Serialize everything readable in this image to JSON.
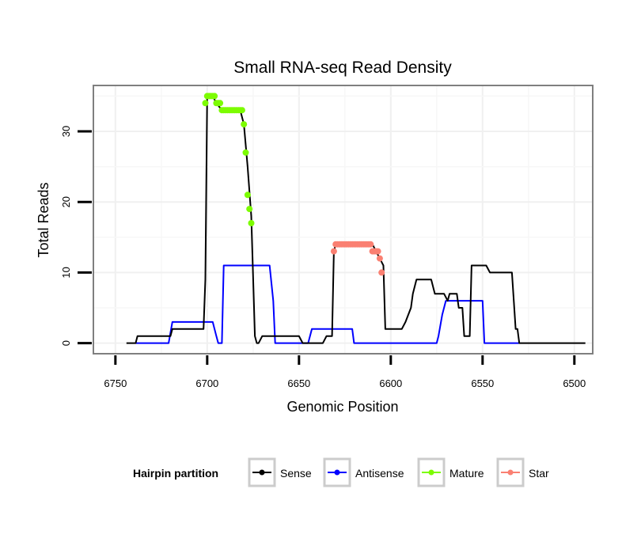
{
  "chart_data": {
    "type": "line",
    "title": "Small RNA-seq Read Density",
    "xlabel": "Genomic Position",
    "ylabel": "Total Reads",
    "xlim": [
      6762,
      6490
    ],
    "ylim": [
      -1.5,
      36.5
    ],
    "x_reversed": true,
    "x_ticks": [
      6750,
      6700,
      6650,
      6600,
      6550,
      6500
    ],
    "y_ticks": [
      0,
      10,
      20,
      30
    ],
    "grid": true,
    "legend": {
      "title": "Hairpin partition",
      "position": "bottom",
      "entries": [
        {
          "name": "Sense",
          "color": "#000000"
        },
        {
          "name": "Antisense",
          "color": "#0000ff"
        },
        {
          "name": "Mature",
          "color": "#7cfc00"
        },
        {
          "name": "Star",
          "color": "#fa8072"
        }
      ]
    },
    "series": [
      {
        "name": "Sense",
        "style": "line",
        "color": "#000000",
        "points": [
          [
            6744,
            0
          ],
          [
            6739,
            0
          ],
          [
            6738,
            1
          ],
          [
            6720,
            1
          ],
          [
            6719,
            2
          ],
          [
            6702,
            2
          ],
          [
            6701,
            9
          ],
          [
            6700,
            35
          ],
          [
            6697,
            35
          ],
          [
            6695,
            34
          ],
          [
            6692,
            33
          ],
          [
            6688,
            33
          ],
          [
            6682,
            33
          ],
          [
            6680,
            31
          ],
          [
            6678,
            25
          ],
          [
            6676,
            18
          ],
          [
            6674,
            1
          ],
          [
            6673,
            0
          ],
          [
            6672,
            0
          ],
          [
            6670,
            1
          ],
          [
            6650,
            1
          ],
          [
            6648,
            0
          ],
          [
            6637,
            0
          ],
          [
            6635,
            1
          ],
          [
            6632,
            1
          ],
          [
            6631,
            13
          ],
          [
            6630,
            14
          ],
          [
            6610,
            14
          ],
          [
            6606,
            12
          ],
          [
            6604,
            11
          ],
          [
            6603,
            2
          ],
          [
            6594,
            2
          ],
          [
            6592,
            3
          ],
          [
            6589,
            5
          ],
          [
            6588,
            7
          ],
          [
            6586,
            9
          ],
          [
            6578,
            9
          ],
          [
            6576,
            7
          ],
          [
            6571,
            7
          ],
          [
            6569,
            6
          ],
          [
            6568,
            7
          ],
          [
            6564,
            7
          ],
          [
            6563,
            5
          ],
          [
            6561,
            5
          ],
          [
            6560,
            1
          ],
          [
            6557,
            1
          ],
          [
            6556,
            11
          ],
          [
            6548,
            11
          ],
          [
            6546,
            10
          ],
          [
            6534,
            10
          ],
          [
            6532,
            2
          ],
          [
            6531,
            2
          ],
          [
            6530,
            0
          ],
          [
            6494,
            0
          ]
        ]
      },
      {
        "name": "Antisense",
        "style": "line",
        "color": "#0000ff",
        "points": [
          [
            6739,
            0
          ],
          [
            6721,
            0
          ],
          [
            6719,
            3
          ],
          [
            6697,
            3
          ],
          [
            6695,
            1
          ],
          [
            6694,
            0
          ],
          [
            6692,
            0
          ],
          [
            6691,
            11
          ],
          [
            6666,
            11
          ],
          [
            6664,
            6
          ],
          [
            6663,
            0
          ],
          [
            6645,
            0
          ],
          [
            6643,
            2
          ],
          [
            6621,
            2
          ],
          [
            6620,
            0
          ],
          [
            6575,
            0
          ],
          [
            6574,
            1
          ],
          [
            6572,
            4
          ],
          [
            6570,
            6
          ],
          [
            6550,
            6
          ],
          [
            6549,
            0
          ],
          [
            6530,
            0
          ]
        ]
      },
      {
        "name": "Mature",
        "style": "points",
        "color": "#7cfc00",
        "points": [
          [
            6701,
            34
          ],
          [
            6700,
            35
          ],
          [
            6699,
            35
          ],
          [
            6698,
            35
          ],
          [
            6697,
            35
          ],
          [
            6696,
            35
          ],
          [
            6695,
            34
          ],
          [
            6694,
            34
          ],
          [
            6693,
            34
          ],
          [
            6692,
            33
          ],
          [
            6691,
            33
          ],
          [
            6690,
            33
          ],
          [
            6689,
            33
          ],
          [
            6688,
            33
          ],
          [
            6687,
            33
          ],
          [
            6686,
            33
          ],
          [
            6685,
            33
          ],
          [
            6684,
            33
          ],
          [
            6683,
            33
          ],
          [
            6682,
            33
          ],
          [
            6681,
            33
          ],
          [
            6680,
            31
          ],
          [
            6679,
            27
          ],
          [
            6678,
            21
          ],
          [
            6677,
            19
          ],
          [
            6676,
            17
          ]
        ]
      },
      {
        "name": "Star",
        "style": "points",
        "color": "#fa8072",
        "points": [
          [
            6631,
            13
          ],
          [
            6630,
            14
          ],
          [
            6629,
            14
          ],
          [
            6628,
            14
          ],
          [
            6627,
            14
          ],
          [
            6626,
            14
          ],
          [
            6625,
            14
          ],
          [
            6624,
            14
          ],
          [
            6623,
            14
          ],
          [
            6622,
            14
          ],
          [
            6621,
            14
          ],
          [
            6620,
            14
          ],
          [
            6619,
            14
          ],
          [
            6618,
            14
          ],
          [
            6617,
            14
          ],
          [
            6616,
            14
          ],
          [
            6615,
            14
          ],
          [
            6614,
            14
          ],
          [
            6613,
            14
          ],
          [
            6612,
            14
          ],
          [
            6611,
            14
          ],
          [
            6610,
            13
          ],
          [
            6609,
            13
          ],
          [
            6608,
            13
          ],
          [
            6607,
            13
          ],
          [
            6606,
            12
          ],
          [
            6605,
            10
          ]
        ]
      }
    ]
  }
}
